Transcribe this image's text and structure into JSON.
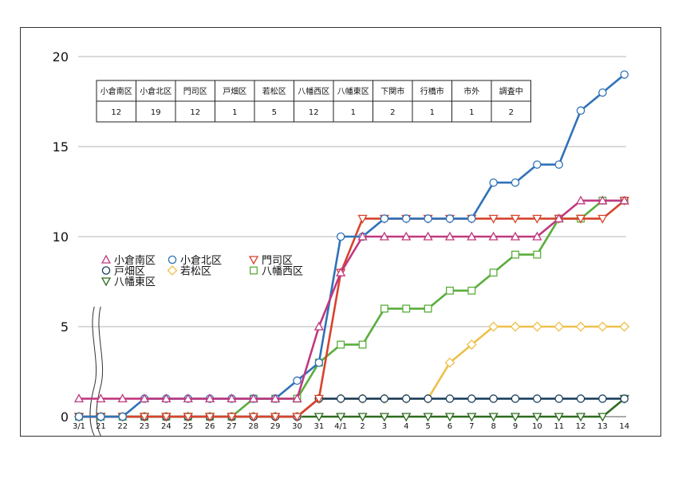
{
  "chart_data": {
    "type": "line",
    "x_labels": [
      "3/1",
      "21",
      "22",
      "23",
      "24",
      "25",
      "26",
      "27",
      "28",
      "29",
      "30",
      "31",
      "4/1",
      "2",
      "3",
      "4",
      "5",
      "6",
      "7",
      "8",
      "9",
      "10",
      "11",
      "12",
      "13",
      "14"
    ],
    "y_ticks": [
      0,
      5,
      10,
      15,
      20
    ],
    "ylim": [
      0,
      20
    ],
    "grid": "horizontal",
    "axis_break_after_first": true,
    "series": [
      {
        "name": "小倉南区",
        "color": "#c0397f",
        "marker": "triangle-up",
        "values": [
          1,
          1,
          1,
          1,
          1,
          1,
          1,
          1,
          1,
          1,
          1,
          5,
          8,
          10,
          10,
          10,
          10,
          10,
          10,
          10,
          10,
          10,
          11,
          12,
          12,
          12
        ]
      },
      {
        "name": "小倉北区",
        "color": "#2f72b8",
        "marker": "circle",
        "values": [
          0,
          0,
          0,
          1,
          1,
          1,
          1,
          1,
          1,
          1,
          2,
          3,
          10,
          10,
          11,
          11,
          11,
          11,
          11,
          13,
          13,
          14,
          14,
          17,
          18,
          19
        ]
      },
      {
        "name": "門司区",
        "color": "#d8432b",
        "marker": "triangle-down",
        "values": [
          0,
          0,
          0,
          0,
          0,
          0,
          0,
          0,
          0,
          0,
          0,
          1,
          8,
          11,
          11,
          11,
          11,
          11,
          11,
          11,
          11,
          11,
          11,
          11,
          11,
          12
        ]
      },
      {
        "name": "戸畑区",
        "color": "#1c3f5e",
        "marker": "circle",
        "values": [
          0,
          0,
          0,
          0,
          0,
          0,
          0,
          0,
          0,
          0,
          0,
          1,
          1,
          1,
          1,
          1,
          1,
          1,
          1,
          1,
          1,
          1,
          1,
          1,
          1,
          1
        ]
      },
      {
        "name": "若松区",
        "color": "#eec04a",
        "marker": "diamond",
        "values": [
          0,
          0,
          0,
          0,
          0,
          0,
          0,
          0,
          0,
          0,
          0,
          1,
          1,
          1,
          1,
          1,
          1,
          3,
          4,
          5,
          5,
          5,
          5,
          5,
          5,
          5
        ]
      },
      {
        "name": "八幡西区",
        "color": "#5aad3c",
        "marker": "square",
        "values": [
          0,
          0,
          0,
          0,
          0,
          0,
          0,
          0,
          1,
          1,
          1,
          3,
          4,
          4,
          6,
          6,
          6,
          7,
          7,
          8,
          9,
          9,
          11,
          11,
          12,
          12
        ]
      },
      {
        "name": "八幡東区",
        "color": "#2d6b1f",
        "marker": "triangle-down",
        "values": [
          0,
          0,
          0,
          0,
          0,
          0,
          0,
          0,
          0,
          0,
          0,
          0,
          0,
          0,
          0,
          0,
          0,
          0,
          0,
          0,
          0,
          0,
          0,
          0,
          0,
          1
        ]
      }
    ],
    "table": {
      "headers": [
        "小倉南区",
        "小倉北区",
        "門司区",
        "戸畑区",
        "若松区",
        "八幡西区",
        "八幡東区",
        "下関市",
        "行橋市",
        "市外",
        "調査中"
      ],
      "values": [
        "12",
        "19",
        "12",
        "1",
        "5",
        "12",
        "1",
        "2",
        "1",
        "1",
        "2"
      ]
    }
  }
}
